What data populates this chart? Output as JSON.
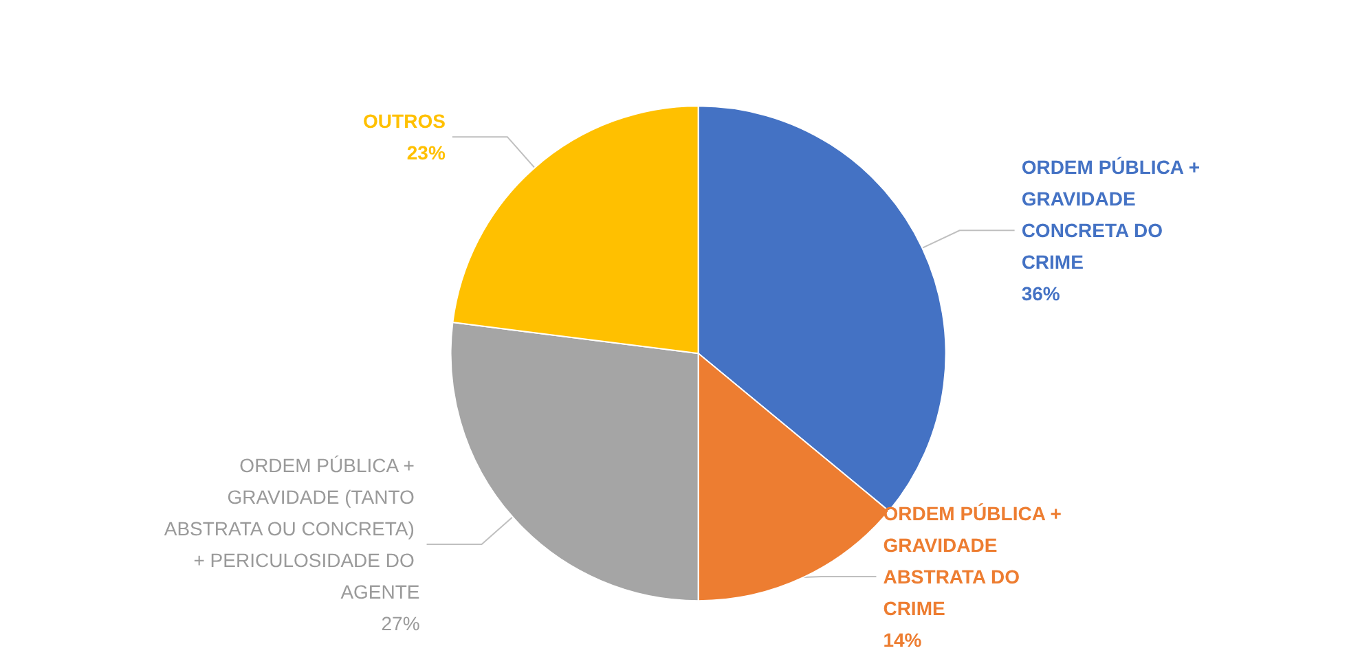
{
  "chart_data": {
    "type": "pie",
    "categories": [
      "ORDEM PÚBLICA + GRAVIDADE CONCRETA DO CRIME",
      "ORDEM PÚBLICA + GRAVIDADE ABSTRATA DO CRIME",
      "ORDEM PÚBLICA + GRAVIDADE (TANTO ABSTRATA OU CONCRETA) + PERICULOSIDADE DO AGENTE",
      "OUTROS"
    ],
    "values": [
      36,
      14,
      27,
      23
    ],
    "value_labels": [
      "36%",
      "14%",
      "27%",
      "23%"
    ],
    "colors": [
      "#4472c4",
      "#ed7d31",
      "#a5a5a5",
      "#ffc000"
    ],
    "legend": false
  }
}
